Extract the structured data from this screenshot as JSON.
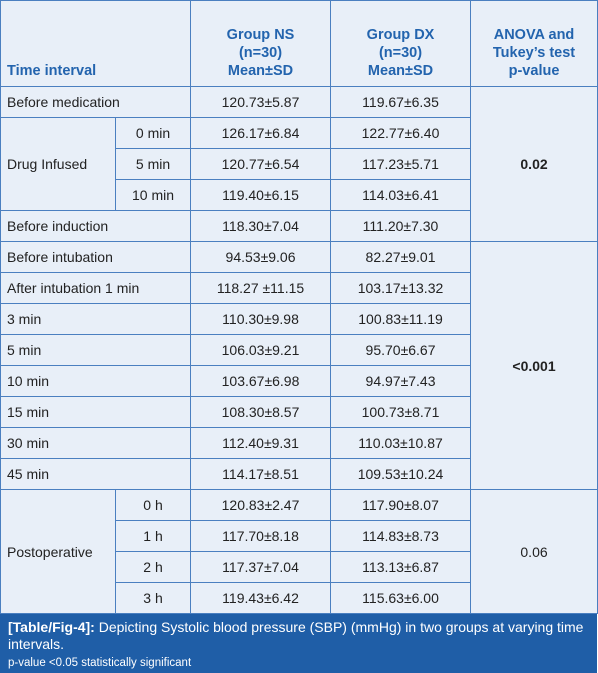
{
  "table": {
    "header": [
      [
        "Time interval"
      ],
      [
        "Group NS",
        "(n=30)",
        "Mean±SD"
      ],
      [
        "Group DX",
        "(n=30)",
        "Mean±SD"
      ],
      [
        "ANOVA and",
        "Tukey’s test",
        "p-value"
      ]
    ],
    "rows": [
      {
        "interval": "Before medication",
        "ns": "120.73±5.87",
        "dx": "119.67±6.35"
      },
      {
        "group": "Drug Infused",
        "times": [
          {
            "time": "0 min",
            "ns": "126.17±6.84",
            "dx": "122.77±6.40"
          },
          {
            "time": "5 min",
            "ns": "120.77±6.54",
            "dx": "117.23±5.71"
          },
          {
            "time": "10 min",
            "ns": "119.40±6.15",
            "dx": "114.03±6.41"
          }
        ]
      },
      {
        "interval": "Before induction",
        "ns": "118.30±7.04",
        "dx": "111.20±7.30"
      },
      {
        "interval": "Before intubation",
        "ns": "94.53±9.06",
        "dx": "82.27±9.01"
      },
      {
        "interval": "After intubation 1 min",
        "ns": "118.27 ±11.15",
        "dx": "103.17±13.32"
      },
      {
        "interval": "3 min",
        "ns": "110.30±9.98",
        "dx": "100.83±11.19"
      },
      {
        "interval": "5 min",
        "ns": "106.03±9.21",
        "dx": "95.70±6.67"
      },
      {
        "interval": "10 min",
        "ns": "103.67±6.98",
        "dx": "94.97±7.43"
      },
      {
        "interval": "15 min",
        "ns": "108.30±8.57",
        "dx": "100.73±8.71"
      },
      {
        "interval": "30 min",
        "ns": "112.40±9.31",
        "dx": "110.03±10.87"
      },
      {
        "interval": "45 min",
        "ns": "114.17±8.51",
        "dx": "109.53±10.24"
      },
      {
        "group": "Postoperative",
        "times": [
          {
            "time": "0 h",
            "ns": "120.83±2.47",
            "dx": "117.90±8.07"
          },
          {
            "time": "1 h",
            "ns": "117.70±8.18",
            "dx": "114.83±8.73"
          },
          {
            "time": "2 h",
            "ns": "117.37±7.04",
            "dx": "113.13±6.87"
          },
          {
            "time": "3 h",
            "ns": "119.43±6.42",
            "dx": "115.63±6.00"
          }
        ]
      }
    ],
    "p_values": [
      "0.02",
      "<0.001",
      "0.06"
    ]
  },
  "caption": {
    "label": "[Table/Fig-4]:",
    "text": "Depicting Systolic blood pressure (SBP) (mmHg) in two groups at varying time intervals.",
    "note": "p-value <0.05 statistically significant"
  }
}
